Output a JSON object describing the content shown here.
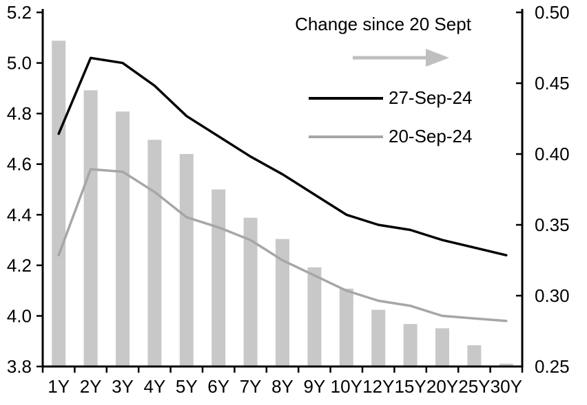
{
  "chart_data": {
    "type": "combo",
    "categories": [
      "1Y",
      "2Y",
      "3Y",
      "4Y",
      "5Y",
      "6Y",
      "7Y",
      "8Y",
      "9Y",
      "10Y",
      "12Y",
      "15Y",
      "20Y",
      "25Y",
      "30Y"
    ],
    "series": [
      {
        "name": "Change since 20 Sept",
        "type": "bar",
        "axis": "right",
        "color": "#c8c8c8",
        "values": [
          0.48,
          0.445,
          0.43,
          0.41,
          0.4,
          0.375,
          0.355,
          0.34,
          0.32,
          0.305,
          0.29,
          0.28,
          0.277,
          0.265,
          0.252
        ]
      },
      {
        "name": "27-Sep-24",
        "type": "line",
        "axis": "left",
        "color": "#000000",
        "values": [
          4.72,
          5.02,
          5.0,
          4.91,
          4.79,
          4.71,
          4.63,
          4.56,
          4.48,
          4.4,
          4.36,
          4.34,
          4.3,
          4.27,
          4.24
        ]
      },
      {
        "name": "20-Sep-24",
        "type": "line",
        "axis": "left",
        "color": "#a6a6a6",
        "values": [
          4.24,
          4.58,
          4.57,
          4.49,
          4.39,
          4.35,
          4.3,
          4.22,
          4.16,
          4.1,
          4.06,
          4.04,
          4.0,
          3.99,
          3.98
        ]
      }
    ],
    "left_axis": {
      "min": 3.8,
      "max": 5.2,
      "tick_step": 0.2,
      "ticks": [
        "5.2",
        "5.0",
        "4.8",
        "4.6",
        "4.4",
        "4.2",
        "4.0",
        "3.8"
      ]
    },
    "right_axis": {
      "min": 0.25,
      "max": 0.5,
      "tick_step": 0.05,
      "ticks": [
        "0.50",
        "0.45",
        "0.40",
        "0.35",
        "0.30",
        "0.25"
      ]
    },
    "legend": {
      "title": "Change since 20 Sept",
      "arrow_color": "#bfbfbf",
      "entries": [
        {
          "label": "27-Sep-24",
          "color": "#000000"
        },
        {
          "label": "20-Sep-24",
          "color": "#a6a6a6"
        }
      ]
    },
    "grid": false,
    "legend_position": "top-right-inside"
  }
}
